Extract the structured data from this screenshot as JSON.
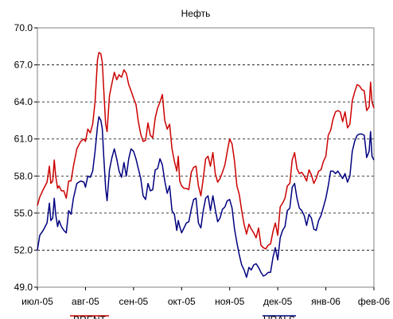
{
  "chart_data": {
    "type": "line",
    "title": "Нефть",
    "xlabel": "",
    "ylabel": "",
    "ylim": [
      49.0,
      70.0
    ],
    "yticks": [
      "70.0",
      "67.0",
      "64.0",
      "61.0",
      "58.0",
      "55.0",
      "52.0",
      "49.0"
    ],
    "ytick_values": [
      70.0,
      67.0,
      64.0,
      61.0,
      58.0,
      55.0,
      52.0,
      49.0
    ],
    "xticks": [
      "июл-05",
      "авг-05",
      "сен-05",
      "окт-05",
      "ноя-05",
      "дек-05",
      "янв-06",
      "фев-06"
    ],
    "xlim": [
      0,
      7
    ],
    "grid": "horizontal dashed",
    "legend_position": "bottom",
    "colors": {
      "BRENT": "#cc0000",
      "URALS": "#000080"
    },
    "series": [
      {
        "name": "BRENT",
        "points": [
          [
            0.0,
            55.6
          ],
          [
            0.05,
            56.3
          ],
          [
            0.12,
            56.9
          ],
          [
            0.2,
            57.5
          ],
          [
            0.25,
            58.8
          ],
          [
            0.28,
            57.4
          ],
          [
            0.32,
            57.6
          ],
          [
            0.35,
            59.3
          ],
          [
            0.38,
            58.0
          ],
          [
            0.42,
            57.0
          ],
          [
            0.45,
            57.2
          ],
          [
            0.5,
            56.8
          ],
          [
            0.55,
            56.8
          ],
          [
            0.6,
            56.2
          ],
          [
            0.65,
            57.6
          ],
          [
            0.7,
            57.6
          ],
          [
            0.75,
            58.8
          ],
          [
            0.82,
            60.2
          ],
          [
            0.9,
            60.8
          ],
          [
            0.97,
            61.0
          ],
          [
            1.0,
            60.8
          ],
          [
            1.05,
            61.8
          ],
          [
            1.1,
            61.5
          ],
          [
            1.15,
            62.2
          ],
          [
            1.2,
            64.0
          ],
          [
            1.25,
            67.4
          ],
          [
            1.28,
            68.0
          ],
          [
            1.32,
            67.9
          ],
          [
            1.35,
            67.2
          ],
          [
            1.38,
            65.0
          ],
          [
            1.42,
            62.2
          ],
          [
            1.45,
            61.6
          ],
          [
            1.5,
            64.5
          ],
          [
            1.55,
            65.5
          ],
          [
            1.6,
            66.4
          ],
          [
            1.65,
            65.8
          ],
          [
            1.7,
            66.2
          ],
          [
            1.75,
            66.0
          ],
          [
            1.8,
            66.6
          ],
          [
            1.85,
            66.3
          ],
          [
            1.9,
            65.4
          ],
          [
            1.95,
            64.9
          ],
          [
            2.0,
            64.3
          ],
          [
            2.05,
            63.8
          ],
          [
            2.1,
            62.4
          ],
          [
            2.15,
            61.4
          ],
          [
            2.2,
            60.8
          ],
          [
            2.25,
            60.9
          ],
          [
            2.3,
            62.3
          ],
          [
            2.35,
            61.3
          ],
          [
            2.4,
            61.1
          ],
          [
            2.45,
            62.7
          ],
          [
            2.5,
            63.5
          ],
          [
            2.55,
            64.0
          ],
          [
            2.6,
            64.6
          ],
          [
            2.65,
            62.5
          ],
          [
            2.7,
            61.8
          ],
          [
            2.75,
            62.2
          ],
          [
            2.8,
            60.2
          ],
          [
            2.85,
            59.2
          ],
          [
            2.9,
            58.4
          ],
          [
            2.93,
            59.6
          ],
          [
            2.96,
            57.6
          ],
          [
            3.0,
            57.2
          ],
          [
            3.05,
            57.0
          ],
          [
            3.1,
            57.0
          ],
          [
            3.15,
            56.9
          ],
          [
            3.2,
            58.3
          ],
          [
            3.25,
            58.7
          ],
          [
            3.3,
            58.8
          ],
          [
            3.35,
            57.2
          ],
          [
            3.4,
            56.4
          ],
          [
            3.45,
            57.8
          ],
          [
            3.5,
            59.4
          ],
          [
            3.55,
            59.6
          ],
          [
            3.6,
            58.8
          ],
          [
            3.65,
            59.9
          ],
          [
            3.7,
            58.2
          ],
          [
            3.75,
            57.5
          ],
          [
            3.8,
            57.8
          ],
          [
            3.85,
            58.3
          ],
          [
            3.9,
            58.9
          ],
          [
            3.95,
            60.0
          ],
          [
            4.0,
            61.0
          ],
          [
            4.05,
            60.6
          ],
          [
            4.1,
            59.2
          ],
          [
            4.15,
            57.2
          ],
          [
            4.2,
            56.5
          ],
          [
            4.25,
            55.2
          ],
          [
            4.3,
            54.1
          ],
          [
            4.35,
            53.3
          ],
          [
            4.4,
            54.1
          ],
          [
            4.45,
            53.7
          ],
          [
            4.5,
            53.4
          ],
          [
            4.55,
            53.0
          ],
          [
            4.6,
            53.8
          ],
          [
            4.65,
            52.4
          ],
          [
            4.7,
            52.2
          ],
          [
            4.75,
            52.1
          ],
          [
            4.8,
            52.4
          ],
          [
            4.85,
            52.5
          ],
          [
            4.9,
            53.5
          ],
          [
            4.95,
            54.2
          ],
          [
            5.0,
            53.2
          ],
          [
            5.05,
            55.5
          ],
          [
            5.1,
            55.8
          ],
          [
            5.15,
            56.2
          ],
          [
            5.2,
            57.2
          ],
          [
            5.25,
            57.4
          ],
          [
            5.3,
            59.3
          ],
          [
            5.35,
            59.9
          ],
          [
            5.4,
            58.6
          ],
          [
            5.45,
            58.2
          ],
          [
            5.5,
            58.3
          ],
          [
            5.55,
            58.0
          ],
          [
            5.6,
            57.6
          ],
          [
            5.65,
            58.5
          ],
          [
            5.7,
            58.1
          ],
          [
            5.75,
            57.4
          ],
          [
            5.8,
            57.8
          ],
          [
            5.85,
            58.4
          ],
          [
            5.9,
            58.5
          ],
          [
            5.95,
            59.2
          ],
          [
            6.0,
            59.6
          ],
          [
            6.05,
            61.3
          ],
          [
            6.1,
            61.7
          ],
          [
            6.15,
            62.6
          ],
          [
            6.2,
            63.2
          ],
          [
            6.25,
            63.3
          ],
          [
            6.3,
            63.2
          ],
          [
            6.35,
            62.4
          ],
          [
            6.4,
            63.2
          ],
          [
            6.45,
            61.9
          ],
          [
            6.5,
            62.2
          ],
          [
            6.55,
            64.1
          ],
          [
            6.6,
            64.8
          ],
          [
            6.65,
            65.4
          ],
          [
            6.7,
            65.3
          ],
          [
            6.75,
            65.0
          ],
          [
            6.8,
            64.9
          ],
          [
            6.85,
            63.3
          ],
          [
            6.9,
            63.6
          ],
          [
            6.93,
            65.6
          ],
          [
            6.96,
            64.0
          ],
          [
            7.0,
            63.5
          ]
        ]
      },
      {
        "name": "URALS",
        "points": [
          [
            0.0,
            52.0
          ],
          [
            0.05,
            53.2
          ],
          [
            0.12,
            53.6
          ],
          [
            0.2,
            54.2
          ],
          [
            0.25,
            55.8
          ],
          [
            0.28,
            54.4
          ],
          [
            0.32,
            54.6
          ],
          [
            0.35,
            56.2
          ],
          [
            0.38,
            54.9
          ],
          [
            0.42,
            53.9
          ],
          [
            0.45,
            54.4
          ],
          [
            0.5,
            53.9
          ],
          [
            0.55,
            53.6
          ],
          [
            0.6,
            53.4
          ],
          [
            0.65,
            55.2
          ],
          [
            0.7,
            54.9
          ],
          [
            0.75,
            56.2
          ],
          [
            0.82,
            57.4
          ],
          [
            0.9,
            57.6
          ],
          [
            0.97,
            57.5
          ],
          [
            1.0,
            57.1
          ],
          [
            1.05,
            58.0
          ],
          [
            1.1,
            57.9
          ],
          [
            1.15,
            58.4
          ],
          [
            1.2,
            60.0
          ],
          [
            1.25,
            62.0
          ],
          [
            1.28,
            62.8
          ],
          [
            1.32,
            62.5
          ],
          [
            1.35,
            61.8
          ],
          [
            1.38,
            59.6
          ],
          [
            1.42,
            57.0
          ],
          [
            1.45,
            56.0
          ],
          [
            1.5,
            58.5
          ],
          [
            1.55,
            59.5
          ],
          [
            1.6,
            60.2
          ],
          [
            1.65,
            59.4
          ],
          [
            1.7,
            58.4
          ],
          [
            1.75,
            57.9
          ],
          [
            1.8,
            59.1
          ],
          [
            1.85,
            58.0
          ],
          [
            1.9,
            59.4
          ],
          [
            1.95,
            60.2
          ],
          [
            2.0,
            60.0
          ],
          [
            2.05,
            59.4
          ],
          [
            2.1,
            58.6
          ],
          [
            2.15,
            57.8
          ],
          [
            2.2,
            56.4
          ],
          [
            2.25,
            56.1
          ],
          [
            2.3,
            57.4
          ],
          [
            2.35,
            56.8
          ],
          [
            2.4,
            56.9
          ],
          [
            2.45,
            58.5
          ],
          [
            2.5,
            58.6
          ],
          [
            2.55,
            59.4
          ],
          [
            2.6,
            58.9
          ],
          [
            2.65,
            57.6
          ],
          [
            2.7,
            56.6
          ],
          [
            2.75,
            57.2
          ],
          [
            2.8,
            55.2
          ],
          [
            2.85,
            54.9
          ],
          [
            2.9,
            53.6
          ],
          [
            2.93,
            54.4
          ],
          [
            2.96,
            53.9
          ],
          [
            3.0,
            53.4
          ],
          [
            3.05,
            53.8
          ],
          [
            3.1,
            54.2
          ],
          [
            3.15,
            54.3
          ],
          [
            3.2,
            55.3
          ],
          [
            3.25,
            56.1
          ],
          [
            3.3,
            56.2
          ],
          [
            3.35,
            54.2
          ],
          [
            3.4,
            53.8
          ],
          [
            3.45,
            55.2
          ],
          [
            3.5,
            56.2
          ],
          [
            3.55,
            56.4
          ],
          [
            3.6,
            55.2
          ],
          [
            3.65,
            56.4
          ],
          [
            3.7,
            55.3
          ],
          [
            3.75,
            54.3
          ],
          [
            3.8,
            54.6
          ],
          [
            3.85,
            55.3
          ],
          [
            3.9,
            55.5
          ],
          [
            3.95,
            56.0
          ],
          [
            4.0,
            56.1
          ],
          [
            4.05,
            55.4
          ],
          [
            4.1,
            53.7
          ],
          [
            4.15,
            52.6
          ],
          [
            4.2,
            51.6
          ],
          [
            4.25,
            50.8
          ],
          [
            4.3,
            50.4
          ],
          [
            4.35,
            49.8
          ],
          [
            4.4,
            50.6
          ],
          [
            4.45,
            50.4
          ],
          [
            4.5,
            50.8
          ],
          [
            4.55,
            50.9
          ],
          [
            4.6,
            50.6
          ],
          [
            4.65,
            50.2
          ],
          [
            4.7,
            49.9
          ],
          [
            4.75,
            50.0
          ],
          [
            4.8,
            50.2
          ],
          [
            4.85,
            50.2
          ],
          [
            4.9,
            51.4
          ],
          [
            4.95,
            52.2
          ],
          [
            5.0,
            51.2
          ],
          [
            5.05,
            53.0
          ],
          [
            5.1,
            53.6
          ],
          [
            5.15,
            53.9
          ],
          [
            5.2,
            55.2
          ],
          [
            5.25,
            55.4
          ],
          [
            5.3,
            57.1
          ],
          [
            5.35,
            57.4
          ],
          [
            5.4,
            56.2
          ],
          [
            5.45,
            55.4
          ],
          [
            5.5,
            55.2
          ],
          [
            5.55,
            54.8
          ],
          [
            5.6,
            54.0
          ],
          [
            5.65,
            54.9
          ],
          [
            5.7,
            54.6
          ],
          [
            5.75,
            53.7
          ],
          [
            5.8,
            53.6
          ],
          [
            5.85,
            54.4
          ],
          [
            5.9,
            54.8
          ],
          [
            5.95,
            55.5
          ],
          [
            6.0,
            56.2
          ],
          [
            6.05,
            57.2
          ],
          [
            6.1,
            58.4
          ],
          [
            6.15,
            58.4
          ],
          [
            6.2,
            58.2
          ],
          [
            6.25,
            58.4
          ],
          [
            6.3,
            58.1
          ],
          [
            6.35,
            57.8
          ],
          [
            6.4,
            58.2
          ],
          [
            6.45,
            57.5
          ],
          [
            6.5,
            58.0
          ],
          [
            6.55,
            60.0
          ],
          [
            6.6,
            60.8
          ],
          [
            6.65,
            61.3
          ],
          [
            6.7,
            61.4
          ],
          [
            6.75,
            61.4
          ],
          [
            6.8,
            61.3
          ],
          [
            6.85,
            59.5
          ],
          [
            6.9,
            60.0
          ],
          [
            6.93,
            61.6
          ],
          [
            6.96,
            59.6
          ],
          [
            7.0,
            59.3
          ]
        ]
      }
    ]
  }
}
